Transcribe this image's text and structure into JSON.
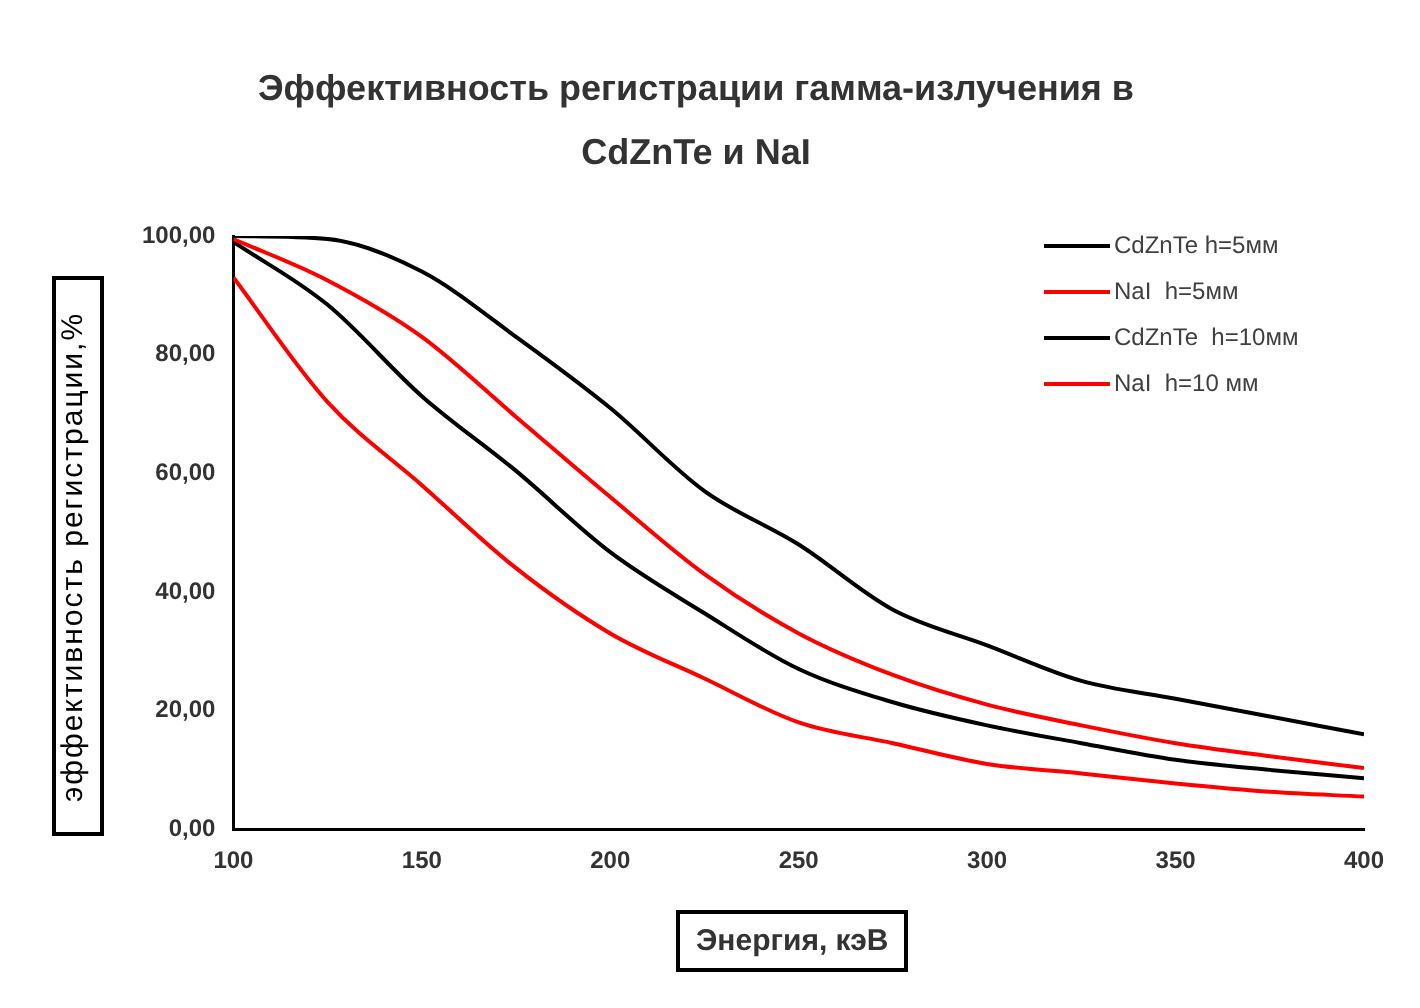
{
  "chart_data": {
    "type": "line",
    "title": "Эффективность регистрации гамма-излучения в CdZnTe и NaI",
    "xlabel": "Энергия, кэВ",
    "ylabel": "эффективность регистрации,%",
    "x": [
      100,
      125,
      150,
      175,
      200,
      225,
      250,
      275,
      300,
      325,
      350,
      375,
      400
    ],
    "series": [
      {
        "name": "CdZnTe h=5мм",
        "color": "#000000",
        "values": [
          100,
          99.5,
          94,
          83,
          71,
          57,
          48,
          37,
          31,
          25,
          22,
          19,
          16
        ]
      },
      {
        "name": "NaI  h=5мм",
        "color": "#ff0000",
        "values": [
          99.5,
          92.5,
          83,
          69.5,
          56,
          43,
          33,
          26,
          21,
          17.5,
          14.5,
          12.3,
          10.3
        ]
      },
      {
        "name": "CdZnTe  h=10мм",
        "color": "#000000",
        "values": [
          99,
          88.4,
          73,
          60.4,
          46.7,
          36.4,
          27,
          21.4,
          17.5,
          14.5,
          11.7,
          10,
          8.6
        ]
      },
      {
        "name": "NaI  h=10 мм",
        "color": "#ff0000",
        "values": [
          93,
          72,
          58,
          44,
          33,
          25.4,
          18,
          14.5,
          11,
          9.4,
          7.7,
          6.3,
          5.5
        ]
      }
    ],
    "xlim": [
      100,
      400
    ],
    "xticks": [
      100,
      150,
      200,
      250,
      300,
      350,
      400
    ],
    "ylim": [
      0,
      100
    ],
    "yticks": [
      {
        "value": 0,
        "label": "0,00"
      },
      {
        "value": 20,
        "label": "20,00"
      },
      {
        "value": 40,
        "label": "40,00"
      },
      {
        "value": 60,
        "label": "60,00"
      },
      {
        "value": 80,
        "label": "80,00"
      },
      {
        "value": 100,
        "label": "100,00"
      }
    ],
    "grid": false,
    "legend": "top right",
    "marker": "none",
    "line_style": "solid"
  }
}
